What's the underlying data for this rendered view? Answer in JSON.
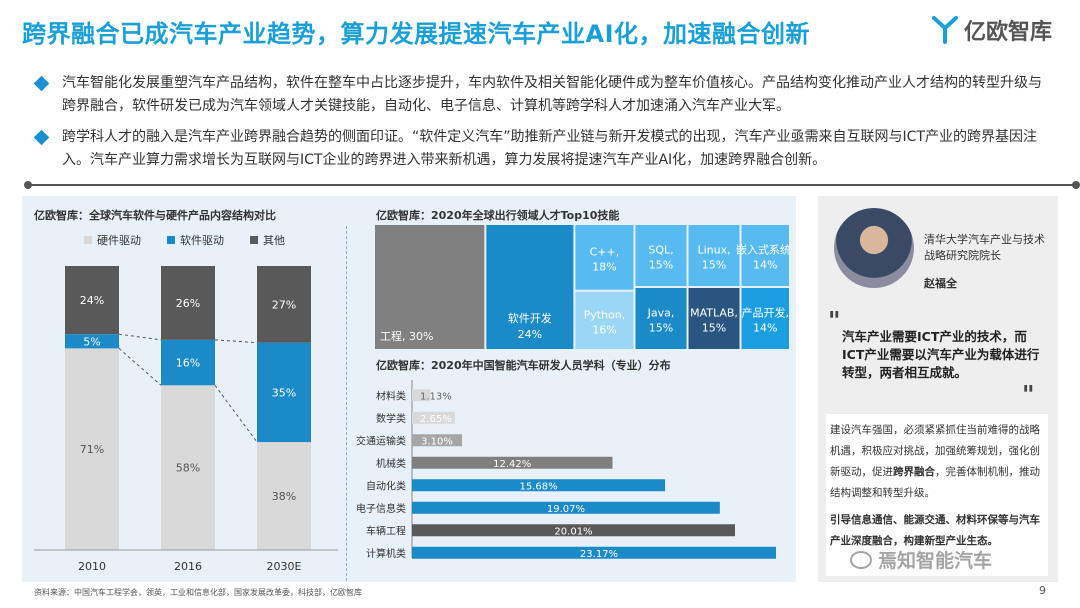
{
  "header": {
    "title": "跨界融合已成汽车产业趋势，算力发展提速汽车产业AI化，加速融合创新",
    "brand_name": "亿欧智库"
  },
  "bullets": [
    "汽车智能化发展重塑汽车产品结构，软件在整车中占比逐步提升，车内软件及相关智能化硬件成为整车价值核心。产品结构变化推动产业人才结构的转型升级与跨界融合，软件研发已成为汽车领域人才关键技能，自动化、电子信息、计算机等跨学科人才加速涌入汽车产业大军。",
    "跨学科人才的融入是汽车产业跨界融合趋势的侧面印证。“软件定义汽车”助推新产业链与新开发模式的出现，汽车产业亟需来自互联网与ICT产业的跨界基因注入。汽车产业算力需求增长为互联网与ICT企业的跨界进入带来新机遇，算力发展将提速汽车产业AI化，加速跨界融合创新。"
  ],
  "colors": {
    "accent": "#1aa0d8",
    "hardware": "#d9d9d9",
    "software": "#1a8ac9",
    "other": "#595959"
  },
  "chart_data": [
    {
      "type": "bar",
      "stacked": true,
      "title": "亿欧智库：全球汽车软件与硬件产品内容结构对比",
      "categories": [
        "2010",
        "2016",
        "2030E"
      ],
      "series": [
        {
          "name": "硬件驱动",
          "values": [
            71,
            58,
            38
          ],
          "labels": [
            "71%",
            "58%",
            "38%"
          ]
        },
        {
          "name": "软件驱动",
          "values": [
            5,
            16,
            35
          ],
          "labels": [
            "5%",
            "16%",
            "35%"
          ]
        },
        {
          "name": "其他",
          "values": [
            24,
            26,
            27
          ],
          "labels": [
            "24%",
            "26%",
            "27%"
          ]
        }
      ],
      "ylim": [
        0,
        100
      ],
      "legend": "top"
    },
    {
      "type": "heatmap",
      "subtype": "treemap",
      "title": "亿欧智库：2020年全球出行领域人才Top10技能",
      "items": [
        {
          "label": "工程",
          "value": 30,
          "text": "工程, 30%",
          "color": "#808080"
        },
        {
          "label": "软件开发",
          "value": 24,
          "text": "软件开发, 24%",
          "color": "#1a8ac9"
        },
        {
          "label": "C++",
          "value": 18,
          "text": "C++, 18%",
          "color": "#57baf0"
        },
        {
          "label": "Python",
          "value": 16,
          "text": "Python, 16%",
          "color": "#9ad6f5"
        },
        {
          "label": "SQL",
          "value": 15,
          "text": "SQL, 15%",
          "color": "#57baf0"
        },
        {
          "label": "Java",
          "value": 15,
          "text": "Java, 15%",
          "color": "#1a8ac9"
        },
        {
          "label": "Linux",
          "value": 15,
          "text": "Linux, 15%",
          "color": "#57baf0"
        },
        {
          "label": "MATLAB",
          "value": 15,
          "text": "MATLAB, 15%",
          "color": "#2a5580"
        },
        {
          "label": "嵌入式系统",
          "value": 14,
          "text": "嵌入式系统, 14%",
          "color": "#57baf0"
        },
        {
          "label": "产品开发",
          "value": 14,
          "text": "产品开发, 14%",
          "color": "#1a9ee0"
        }
      ]
    },
    {
      "type": "bar",
      "orientation": "horizontal",
      "title": "亿欧智库：2020年中国智能汽车研发人员学科（专业）分布",
      "categories": [
        "材料类",
        "数学类",
        "交通运输类",
        "机械类",
        "自动化类",
        "电子信息类",
        "车辆工程",
        "计算机类"
      ],
      "values": [
        1.13,
        2.65,
        3.1,
        12.42,
        15.68,
        19.07,
        20.01,
        23.17
      ],
      "labels": [
        "1.13%",
        "2.65%",
        "3.10%",
        "12.42%",
        "15.68%",
        "19.07%",
        "20.01%",
        "23.17%"
      ],
      "colors": [
        "#d9d9d9",
        "#d9d9d9",
        "#a6a6a6",
        "#7f7f7f",
        "#1a8ac9",
        "#1a8ac9",
        "#595959",
        "#1a8ac9"
      ]
    }
  ],
  "expert": {
    "title": "清华大学汽车产业与技术战略研究院院长",
    "name": "赵福全",
    "quote": "汽车产业需要ICT产业的技术，而ICT产业需要以汽车产业为载体进行转型，两者相互成就。",
    "notes_1_pre": "建设汽车强国，必须紧紧抓住当前难得的战略机遇，积极应对挑战，加强统筹规划，强化创新驱动，促进",
    "notes_1_bold": "跨界融合",
    "notes_1_post": "，完善体制机制，推动结构调整和转型升级。",
    "notes_2": "引导信息通信、能源交通、材料环保等与汽车产业深度融合，构建新型产业生态。"
  },
  "footer": {
    "source": "资料来源：中国汽车工程学会，领英，工业和信息化部，国家发展改革委，科技部，亿欧智库",
    "page": "9",
    "watermark": "焉知智能汽车"
  }
}
